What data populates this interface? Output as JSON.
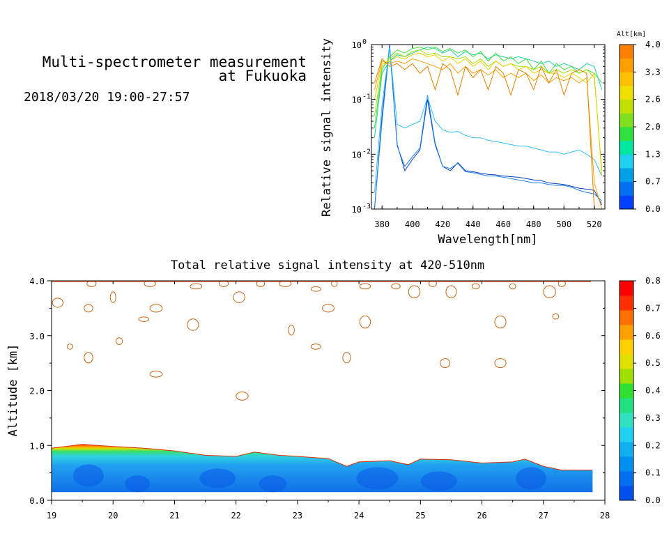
{
  "header": {
    "title_line1": "Multi-spectrometer measurement",
    "title_line2": "at Fukuoka",
    "datetime": "2018/03/20 19:00-27:57"
  },
  "chart_data": [
    {
      "type": "line",
      "xlabel": "Wavelength[nm]",
      "ylabel": "Relative signal intensity",
      "xlim": [
        373,
        527
      ],
      "ylim": [
        0.001,
        1
      ],
      "y_scale": "log",
      "x_ticks": [
        380,
        400,
        420,
        440,
        460,
        480,
        500,
        520
      ],
      "y_ticks": [
        {
          "value": 0.001,
          "base": "10",
          "exp": "-3"
        },
        {
          "value": 0.01,
          "base": "10",
          "exp": "-2"
        },
        {
          "value": 0.1,
          "base": "10",
          "exp": "-1"
        },
        {
          "value": 1,
          "base": "10",
          "exp": "0"
        }
      ],
      "colorbar": {
        "title": "Alt[km]",
        "labels": [
          "4.0",
          "3.3",
          "2.6",
          "2.0",
          "1.3",
          "0.7",
          "0.0"
        ],
        "colors": [
          "#0040ff",
          "#0070ee",
          "#00a0e8",
          "#20d0f0",
          "#00e8a0",
          "#30e040",
          "#80e020",
          "#c0e000",
          "#f0e000",
          "#ffc000",
          "#ffa000",
          "#ff8000"
        ]
      },
      "wavelengths": [
        375,
        380,
        385,
        390,
        395,
        400,
        405,
        410,
        415,
        420,
        425,
        430,
        435,
        440,
        445,
        450,
        455,
        460,
        465,
        470,
        475,
        480,
        485,
        490,
        495,
        500,
        505,
        510,
        515,
        520,
        525
      ],
      "series": [
        {
          "color": "#0040c0",
          "values": [
            0.001,
            0.05,
            1.0,
            0.015,
            0.005,
            0.008,
            0.012,
            0.1,
            0.015,
            0.006,
            0.005,
            0.007,
            0.005,
            0.0048,
            0.0045,
            0.0043,
            0.0042,
            0.004,
            0.0039,
            0.0038,
            0.0036,
            0.0034,
            0.0033,
            0.003,
            0.0029,
            0.0028,
            0.0026,
            0.0024,
            0.0023,
            0.0022,
            0.0012
          ]
        },
        {
          "color": "#2080e0",
          "values": [
            0.001,
            0.04,
            0.9,
            0.014,
            0.006,
            0.009,
            0.013,
            0.12,
            0.016,
            0.006,
            0.0055,
            0.0068,
            0.0048,
            0.0046,
            0.0043,
            0.004,
            0.004,
            0.0038,
            0.0036,
            0.0034,
            0.0032,
            0.003,
            0.003,
            0.0028,
            0.0027,
            0.0027,
            0.0025,
            0.0022,
            0.002,
            0.0019,
            0.0014
          ]
        },
        {
          "color": "#30c0f0",
          "values": [
            0.002,
            0.08,
            0.9,
            0.035,
            0.03,
            0.035,
            0.04,
            0.11,
            0.04,
            0.028,
            0.025,
            0.026,
            0.022,
            0.02,
            0.02,
            0.018,
            0.017,
            0.016,
            0.015,
            0.014,
            0.014,
            0.013,
            0.012,
            0.011,
            0.011,
            0.01,
            0.011,
            0.012,
            0.01,
            0.008,
            0.004
          ]
        },
        {
          "color": "#20d0a0",
          "values": [
            0.02,
            0.3,
            0.5,
            0.65,
            0.6,
            0.7,
            0.8,
            0.9,
            0.85,
            0.7,
            0.8,
            0.6,
            0.75,
            0.65,
            0.7,
            0.55,
            0.65,
            0.6,
            0.55,
            0.6,
            0.55,
            0.5,
            0.45,
            0.5,
            0.4,
            0.45,
            0.4,
            0.35,
            0.45,
            0.4,
            0.15
          ]
        },
        {
          "color": "#40e040",
          "values": [
            0.03,
            0.35,
            0.6,
            0.8,
            0.7,
            0.85,
            0.9,
            0.8,
            0.9,
            0.75,
            0.85,
            0.7,
            0.8,
            0.6,
            0.75,
            0.5,
            0.7,
            0.5,
            0.6,
            0.45,
            0.55,
            0.35,
            0.5,
            0.3,
            0.45,
            0.35,
            0.4,
            0.3,
            0.35,
            0.3,
            0.2
          ]
        },
        {
          "color": "#a0e000",
          "values": [
            0.05,
            0.4,
            0.55,
            0.7,
            0.6,
            0.75,
            0.8,
            0.65,
            0.7,
            0.6,
            0.6,
            0.55,
            0.6,
            0.45,
            0.55,
            0.4,
            0.5,
            0.4,
            0.45,
            0.4,
            0.4,
            0.35,
            0.4,
            0.3,
            0.35,
            0.3,
            0.35,
            0.3,
            0.35,
            0.25,
            0.005
          ]
        },
        {
          "color": "#f0d000",
          "values": [
            0.1,
            0.45,
            0.5,
            0.6,
            0.55,
            0.65,
            0.7,
            0.6,
            0.65,
            0.5,
            0.6,
            0.45,
            0.55,
            0.4,
            0.5,
            0.35,
            0.5,
            0.4,
            0.45,
            0.35,
            0.4,
            0.3,
            0.35,
            0.3,
            0.3,
            0.25,
            0.3,
            0.25,
            0.2,
            0.3,
            0.004
          ]
        },
        {
          "color": "#ffa000",
          "values": [
            0.15,
            0.5,
            0.45,
            0.5,
            0.45,
            0.55,
            0.5,
            0.45,
            0.4,
            0.35,
            0.45,
            0.3,
            0.4,
            0.3,
            0.35,
            0.28,
            0.35,
            0.25,
            0.3,
            0.25,
            0.3,
            0.22,
            0.28,
            0.2,
            0.25,
            0.22,
            0.25,
            0.2,
            0.25,
            0.003,
            0.001
          ]
        },
        {
          "color": "#e08000",
          "values": [
            0.2,
            0.55,
            0.4,
            0.45,
            0.35,
            0.45,
            0.3,
            0.4,
            0.15,
            0.45,
            0.35,
            0.12,
            0.4,
            0.25,
            0.35,
            0.15,
            0.4,
            0.3,
            0.12,
            0.35,
            0.3,
            0.15,
            0.4,
            0.2,
            0.35,
            0.12,
            0.3,
            0.35,
            0.3,
            0.001,
            0.001
          ]
        }
      ]
    },
    {
      "type": "heatmap",
      "title": "Total relative signal intensity at 420-510nm",
      "ylabel": "Altitude [km]",
      "xlabel": "",
      "xlim": [
        19,
        28
      ],
      "ylim": [
        0,
        4
      ],
      "x_ticks": [
        "19",
        "20",
        "21",
        "22",
        "23",
        "24",
        "25",
        "26",
        "27",
        "28"
      ],
      "y_ticks": [
        "0.0",
        "1.0",
        "2.0",
        "3.0",
        "4.0"
      ],
      "colorbar": {
        "labels": [
          "0.8",
          "0.7",
          "0.6",
          "0.5",
          "0.4",
          "0.3",
          "0.2",
          "0.1",
          "0.0"
        ],
        "colors": [
          "#0050f0",
          "#0070f0",
          "#0090f0",
          "#10b0f0",
          "#20d0f0",
          "#30e0c0",
          "#20e080",
          "#30e030",
          "#a0e000",
          "#e0e000",
          "#ffd000",
          "#ffa000",
          "#ff7000",
          "#ff3000",
          "#ff0000"
        ]
      },
      "layer_top_km": [
        [
          19.0,
          0.95
        ],
        [
          19.5,
          1.02
        ],
        [
          20.0,
          0.98
        ],
        [
          20.5,
          0.95
        ],
        [
          21.0,
          0.9
        ],
        [
          21.5,
          0.82
        ],
        [
          22.0,
          0.8
        ],
        [
          22.3,
          0.88
        ],
        [
          22.7,
          0.82
        ],
        [
          23.0,
          0.8
        ],
        [
          23.5,
          0.76
        ],
        [
          23.8,
          0.62
        ],
        [
          24.0,
          0.7
        ],
        [
          24.5,
          0.72
        ],
        [
          24.8,
          0.65
        ],
        [
          25.0,
          0.75
        ],
        [
          25.5,
          0.74
        ],
        [
          26.0,
          0.68
        ],
        [
          26.5,
          0.7
        ],
        [
          26.7,
          0.75
        ],
        [
          27.0,
          0.62
        ],
        [
          27.3,
          0.55
        ],
        [
          27.8,
          0.55
        ]
      ],
      "data_bottom_km": 0.15,
      "data_end_x": 27.8
    }
  ]
}
